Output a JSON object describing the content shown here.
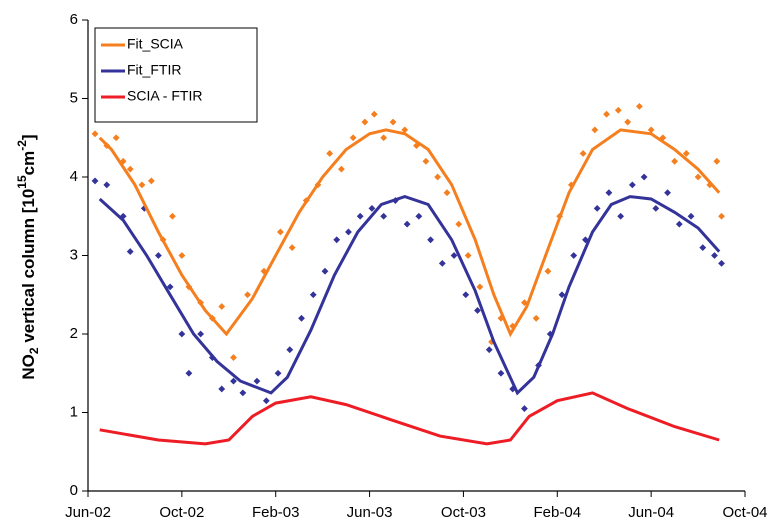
{
  "chart_data": {
    "type": "scatter",
    "ylabel_parts": [
      "NO",
      "2",
      " vertical column [10",
      "15",
      "cm",
      "-2",
      "]"
    ],
    "xlim": [
      0,
      28
    ],
    "xticks": [
      {
        "value": 0,
        "label": "Jun-02"
      },
      {
        "value": 4,
        "label": "Oct-02"
      },
      {
        "value": 8,
        "label": "Feb-03"
      },
      {
        "value": 12,
        "label": "Jun-03"
      },
      {
        "value": 16,
        "label": "Oct-03"
      },
      {
        "value": 20,
        "label": "Feb-04"
      },
      {
        "value": 24,
        "label": "Jun-04"
      },
      {
        "value": 28,
        "label": "Oct-04"
      }
    ],
    "ylim": [
      0,
      6
    ],
    "yticks": [
      0,
      1,
      2,
      3,
      4,
      5,
      6
    ],
    "legend": "upper left",
    "series": [
      {
        "color": "#f57f1e",
        "mode": "markers",
        "x": [
          0.3,
          0.8,
          1.2,
          1.5,
          1.8,
          2.3,
          2.7,
          3.2,
          3.6,
          4.0,
          4.3,
          4.8,
          5.3,
          5.7,
          6.2,
          6.8,
          7.5,
          8.2,
          8.7,
          9.3,
          9.8,
          10.3,
          10.8,
          11.3,
          11.8,
          12.2,
          12.6,
          13.0,
          13.5,
          14.0,
          14.4,
          14.9,
          15.3,
          15.8,
          16.2,
          16.7,
          17.2,
          17.6,
          18.1,
          18.6,
          19.1,
          19.6,
          20.1,
          20.6,
          21.1,
          21.6,
          22.1,
          22.6,
          23.0,
          23.5,
          24.0,
          24.5,
          25.0,
          25.5,
          26.0,
          26.5,
          26.8,
          27.0
        ],
        "values": [
          4.55,
          4.4,
          4.5,
          4.2,
          4.1,
          3.9,
          3.95,
          3.2,
          3.5,
          3.0,
          2.6,
          2.4,
          2.2,
          2.35,
          1.7,
          2.5,
          2.8,
          3.3,
          3.1,
          3.7,
          3.9,
          4.3,
          4.1,
          4.5,
          4.7,
          4.8,
          4.5,
          4.7,
          4.6,
          4.4,
          4.2,
          4.0,
          3.8,
          3.4,
          3.0,
          2.6,
          1.9,
          2.2,
          2.1,
          2.4,
          2.2,
          2.8,
          3.5,
          3.9,
          4.3,
          4.6,
          4.8,
          4.85,
          4.7,
          4.9,
          4.6,
          4.5,
          4.2,
          4.3,
          4.0,
          3.9,
          4.2,
          3.5
        ]
      },
      {
        "color": "#333399",
        "mode": "markers",
        "x": [
          0.3,
          0.8,
          1.5,
          1.8,
          2.4,
          3.0,
          3.5,
          4.0,
          4.3,
          4.8,
          5.3,
          5.7,
          6.2,
          6.6,
          7.2,
          7.6,
          8.1,
          8.6,
          9.1,
          9.6,
          10.1,
          10.6,
          11.1,
          11.6,
          12.1,
          12.6,
          13.1,
          13.6,
          14.1,
          14.6,
          15.1,
          15.6,
          16.1,
          16.6,
          17.1,
          17.6,
          18.1,
          18.6,
          19.2,
          19.7,
          20.2,
          20.7,
          21.2,
          21.7,
          22.2,
          22.7,
          23.2,
          23.7,
          24.2,
          24.7,
          25.2,
          25.7,
          26.2,
          26.7,
          27.0
        ],
        "values": [
          3.95,
          3.9,
          3.5,
          3.05,
          3.6,
          3.0,
          2.6,
          2.0,
          1.5,
          2.0,
          1.7,
          1.3,
          1.4,
          1.25,
          1.4,
          1.15,
          1.5,
          1.8,
          2.2,
          2.5,
          2.8,
          3.2,
          3.3,
          3.5,
          3.6,
          3.5,
          3.7,
          3.4,
          3.5,
          3.2,
          2.9,
          3.0,
          2.5,
          2.3,
          1.8,
          1.5,
          1.3,
          1.05,
          1.6,
          2.0,
          2.5,
          3.0,
          3.2,
          3.6,
          3.8,
          3.5,
          3.9,
          4.0,
          3.6,
          3.8,
          3.4,
          3.5,
          3.1,
          3.0,
          2.9
        ]
      },
      {
        "name": "Fit_SCIA",
        "color": "#f57f1e",
        "mode": "line",
        "x": [
          0.5,
          1,
          2,
          3,
          4,
          5,
          5.9,
          7,
          8,
          9,
          10,
          11,
          12,
          12.7,
          13.5,
          14.5,
          15.5,
          16.5,
          17.3,
          18,
          18.7,
          19.5,
          20.5,
          21.5,
          22.7,
          24,
          25,
          26,
          26.9
        ],
        "values": [
          4.5,
          4.35,
          3.9,
          3.3,
          2.75,
          2.3,
          2.0,
          2.45,
          3.0,
          3.55,
          4.0,
          4.35,
          4.55,
          4.6,
          4.55,
          4.35,
          3.9,
          3.2,
          2.5,
          2.0,
          2.35,
          3.0,
          3.8,
          4.35,
          4.6,
          4.55,
          4.35,
          4.1,
          3.8
        ]
      },
      {
        "name": "Fit_FTIR",
        "color": "#333399",
        "mode": "line",
        "x": [
          0.5,
          1.5,
          2.5,
          3.5,
          4.5,
          5.5,
          6.5,
          7.8,
          8.5,
          9.5,
          10.5,
          11.5,
          12.5,
          13.5,
          14.5,
          15.5,
          16.5,
          17.3,
          18.3,
          19,
          19.8,
          20.5,
          21.5,
          22.3,
          23.1,
          24,
          25,
          26,
          26.9
        ],
        "values": [
          3.72,
          3.45,
          3.0,
          2.5,
          2.0,
          1.65,
          1.4,
          1.25,
          1.45,
          2.05,
          2.75,
          3.3,
          3.65,
          3.75,
          3.65,
          3.2,
          2.55,
          1.9,
          1.25,
          1.45,
          2.0,
          2.6,
          3.3,
          3.65,
          3.75,
          3.72,
          3.55,
          3.35,
          3.05
        ]
      },
      {
        "name": "SCIA - FTIR",
        "color": "#ee1c25",
        "mode": "line",
        "x": [
          0.5,
          3,
          5,
          6,
          7,
          8,
          9.5,
          11,
          13,
          15,
          17,
          18,
          18.8,
          20,
          21.5,
          23,
          25,
          26.9
        ],
        "values": [
          0.78,
          0.65,
          0.6,
          0.65,
          0.95,
          1.12,
          1.2,
          1.1,
          0.9,
          0.7,
          0.6,
          0.65,
          0.95,
          1.15,
          1.25,
          1.05,
          0.82,
          0.65
        ]
      }
    ]
  }
}
